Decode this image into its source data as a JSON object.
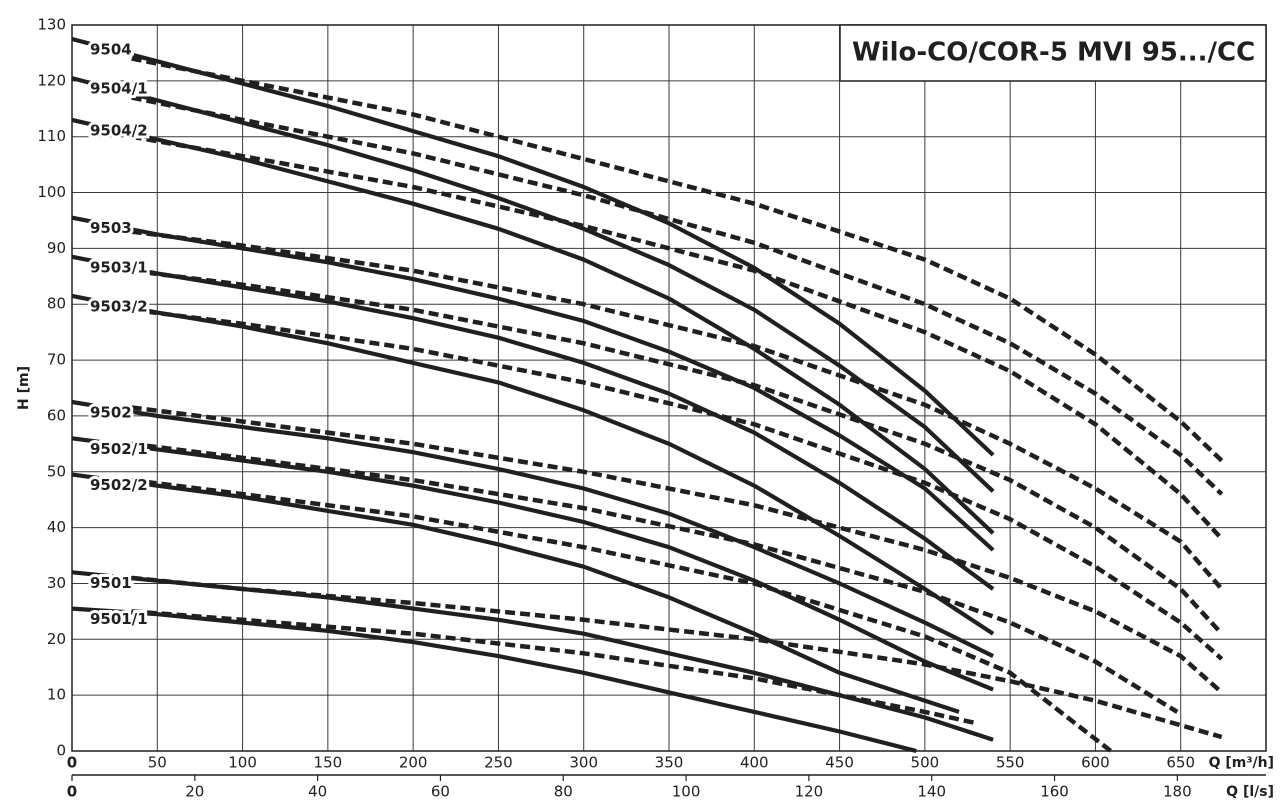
{
  "chart_data": {
    "type": "line",
    "title": "Wilo-CO/COR-5 MVI 95.../CC",
    "ylabel": "H [m]",
    "xlabel": "Q [m³/h]",
    "x2label": "Q [l/s]",
    "xlim": [
      0,
      700
    ],
    "ylim": [
      0,
      130
    ],
    "x2lim": [
      0,
      194.44
    ],
    "xticks": [
      0,
      50,
      100,
      150,
      200,
      250,
      300,
      350,
      400,
      450,
      500,
      550,
      600,
      650
    ],
    "yticks": [
      0,
      10,
      20,
      30,
      40,
      50,
      60,
      70,
      80,
      90,
      100,
      110,
      120,
      130
    ],
    "x2ticks": [
      0,
      20,
      40,
      60,
      80,
      100,
      120,
      140,
      160,
      180
    ],
    "grid": true,
    "series": [
      {
        "name": "9504",
        "color": "#231f20",
        "lines": [
          {
            "style": "solid",
            "x": [
              0,
              50,
              100,
              150,
              200,
              250,
              300,
              350,
              400,
              450,
              500,
              540
            ],
            "values": [
              127.5,
              123.5,
              119.5,
              115.5,
              111,
              106.5,
              101,
              94.5,
              86.5,
              76.5,
              64.5,
              53
            ]
          },
          {
            "style": "dashed",
            "x": [
              35,
              100,
              200,
              300,
              400,
              450,
              500,
              550,
              600,
              650,
              674
            ],
            "values": [
              124,
              120,
              114,
              106,
              98,
              93,
              88,
              81,
              71,
              59,
              52
            ]
          }
        ]
      },
      {
        "name": "9504/1",
        "color": "#231f20",
        "lines": [
          {
            "style": "solid",
            "x": [
              0,
              50,
              100,
              150,
              200,
              250,
              300,
              350,
              400,
              450,
              500,
              540
            ],
            "values": [
              120.5,
              116.5,
              112.5,
              108.5,
              104,
              99,
              93.5,
              87,
              79,
              69,
              58,
              46.5
            ]
          },
          {
            "style": "dashed",
            "x": [
              35,
              100,
              200,
              300,
              400,
              500,
              550,
              600,
              650,
              674
            ],
            "values": [
              117,
              113,
              107,
              99.5,
              91,
              80,
              73,
              64,
              53,
              46
            ]
          }
        ]
      },
      {
        "name": "9504/2",
        "color": "#231f20",
        "lines": [
          {
            "style": "solid",
            "x": [
              0,
              50,
              100,
              150,
              200,
              250,
              300,
              350,
              400,
              450,
              500,
              540
            ],
            "values": [
              113,
              109.5,
              106,
              102,
              98,
              93.5,
              88,
              81,
              72,
              62,
              50.5,
              39
            ]
          },
          {
            "style": "dashed",
            "x": [
              35,
              100,
              200,
              300,
              400,
              500,
              550,
              600,
              650,
              674
            ],
            "values": [
              110,
              106.5,
              101,
              94,
              86,
              75,
              68,
              58.5,
              46,
              38
            ]
          }
        ]
      },
      {
        "name": "9503",
        "color": "#231f20",
        "lines": [
          {
            "style": "solid",
            "x": [
              0,
              50,
              100,
              150,
              200,
              250,
              300,
              350,
              400,
              450,
              500,
              540
            ],
            "values": [
              95.5,
              92.5,
              90,
              87.5,
              84.5,
              81,
              77,
              71.5,
              65,
              56.5,
              47,
              36
            ]
          },
          {
            "style": "dashed",
            "x": [
              35,
              100,
              200,
              300,
              400,
              500,
              550,
              600,
              650,
              674
            ],
            "values": [
              93,
              90.5,
              86,
              80,
              72.5,
              62,
              55,
              47,
              37.5,
              29
            ]
          }
        ]
      },
      {
        "name": "9503/1",
        "color": "#231f20",
        "lines": [
          {
            "style": "solid",
            "x": [
              0,
              50,
              100,
              150,
              200,
              250,
              300,
              350,
              400,
              450,
              500,
              540
            ],
            "values": [
              88.5,
              85.5,
              83,
              80.5,
              77.5,
              74,
              69.5,
              64,
              57,
              48,
              38,
              29
            ]
          },
          {
            "style": "dashed",
            "x": [
              35,
              100,
              200,
              300,
              400,
              500,
              550,
              600,
              650,
              674
            ],
            "values": [
              86,
              83.5,
              79,
              73,
              65.5,
              55,
              48.5,
              40,
              29,
              21
            ]
          }
        ]
      },
      {
        "name": "9503/2",
        "color": "#231f20",
        "lines": [
          {
            "style": "solid",
            "x": [
              0,
              50,
              100,
              150,
              200,
              250,
              300,
              350,
              400,
              450,
              500,
              540
            ],
            "values": [
              81.5,
              78.5,
              76,
              73,
              69.5,
              66,
              61,
              55,
              47.5,
              38.5,
              29,
              21
            ]
          },
          {
            "style": "dashed",
            "x": [
              35,
              100,
              200,
              300,
              400,
              500,
              550,
              600,
              650,
              674
            ],
            "values": [
              79,
              76.5,
              72,
              66,
              58.5,
              48,
              41.5,
              33,
              23,
              16.5
            ]
          }
        ]
      },
      {
        "name": "9502",
        "color": "#231f20",
        "lines": [
          {
            "style": "solid",
            "x": [
              0,
              50,
              100,
              150,
              200,
              250,
              300,
              350,
              400,
              450,
              500,
              540
            ],
            "values": [
              62.5,
              60,
              58,
              56,
              53.5,
              50.5,
              47,
              42.5,
              36.5,
              30,
              23,
              17
            ]
          },
          {
            "style": "dashed",
            "x": [
              35,
              100,
              200,
              300,
              400,
              500,
              550,
              600,
              650,
              674
            ],
            "values": [
              61.5,
              59,
              55,
              50,
              44,
              36,
              31,
              25,
              17,
              10.5
            ]
          }
        ]
      },
      {
        "name": "9502/1",
        "color": "#231f20",
        "lines": [
          {
            "style": "solid",
            "x": [
              0,
              50,
              100,
              150,
              200,
              250,
              300,
              350,
              400,
              450,
              500,
              540
            ],
            "values": [
              56,
              54,
              52,
              50,
              47.5,
              44.5,
              41,
              36.5,
              30.5,
              23.5,
              16,
              11
            ]
          },
          {
            "style": "dashed",
            "x": [
              35,
              100,
              200,
              300,
              400,
              500,
              550,
              600,
              648
            ],
            "values": [
              55,
              52.5,
              48.5,
              43.5,
              37,
              28.5,
              23,
              16,
              7
            ]
          }
        ]
      },
      {
        "name": "9502/2",
        "color": "#231f20",
        "lines": [
          {
            "style": "solid",
            "x": [
              0,
              50,
              100,
              150,
              200,
              250,
              300,
              350,
              400,
              450,
              520
            ],
            "values": [
              49.5,
              47.5,
              45.5,
              43,
              40.5,
              37,
              33,
              27.5,
              21,
              14,
              7
            ]
          },
          {
            "style": "dashed",
            "x": [
              35,
              100,
              200,
              300,
              400,
              500,
              550,
              609
            ],
            "values": [
              48.5,
              46,
              42,
              36.5,
              30,
              20.5,
              14,
              0
            ]
          }
        ]
      },
      {
        "name": "9501",
        "color": "#231f20",
        "lines": [
          {
            "style": "solid",
            "x": [
              0,
              50,
              100,
              150,
              200,
              250,
              300,
              350,
              400,
              450,
              500,
              540
            ],
            "values": [
              32,
              30.5,
              29,
              27.5,
              25.5,
              23.5,
              21,
              17.5,
              14,
              10,
              6,
              2
            ]
          },
          {
            "style": "dashed",
            "x": [
              35,
              100,
              200,
              300,
              400,
              500,
              550,
              600,
              674
            ],
            "values": [
              31,
              29,
              26.5,
              23.5,
              20,
              15.5,
              12.5,
              9,
              2.5
            ]
          }
        ]
      },
      {
        "name": "9501/1",
        "color": "#231f20",
        "lines": [
          {
            "style": "solid",
            "x": [
              0,
              50,
              100,
              150,
              200,
              250,
              300,
              350,
              400,
              450,
              495
            ],
            "values": [
              25.5,
              24.5,
              23,
              21.5,
              19.5,
              17,
              14,
              10.5,
              7,
              3.5,
              0
            ]
          },
          {
            "style": "dashed",
            "x": [
              35,
              100,
              200,
              300,
              400,
              500,
              530
            ],
            "values": [
              25,
              23.5,
              21,
              17.5,
              13,
              7,
              5
            ]
          }
        ]
      }
    ]
  }
}
